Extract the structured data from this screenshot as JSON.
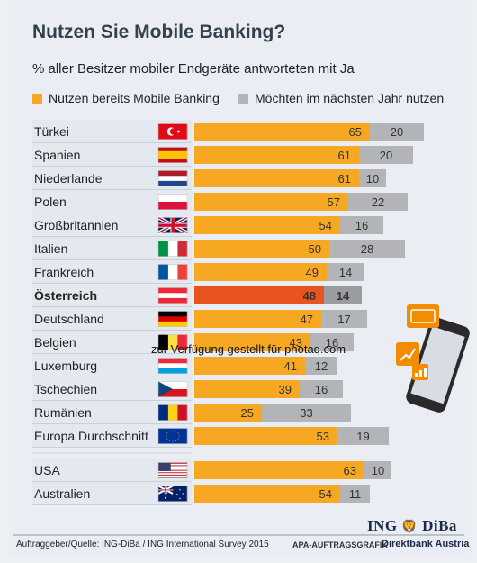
{
  "title": "Nutzen Sie Mobile Banking?",
  "subtitle": "% aller Besitzer mobiler Endgeräte antworteten mit Ja",
  "colors": {
    "series_1": "#f7a823",
    "series_1_highlight": "#e8541f",
    "series_2": "#b2b4b7",
    "series_2_highlight": "#9a9ca0",
    "row_label_bg": "#e4e9f0",
    "icon_orange": "#f28c00"
  },
  "chart_data": {
    "type": "bar",
    "orientation": "horizontal",
    "stacked": true,
    "categories": [
      "Türkei",
      "Spanien",
      "Niederlande",
      "Polen",
      "Großbritannien",
      "Italien",
      "Frankreich",
      "Österreich",
      "Deutschland",
      "Belgien",
      "Luxemburg",
      "Tschechien",
      "Rumänien",
      "Europa Durchschnitt",
      "USA",
      "Australien"
    ],
    "highlight": "Österreich",
    "series": [
      {
        "name": "Nutzen bereits Mobile Banking",
        "values": [
          65,
          61,
          61,
          57,
          54,
          50,
          49,
          48,
          47,
          43,
          41,
          39,
          25,
          53,
          63,
          54
        ]
      },
      {
        "name": "Möchten im nächsten Jahr nutzen",
        "values": [
          20,
          20,
          10,
          22,
          16,
          28,
          14,
          14,
          17,
          16,
          12,
          16,
          33,
          19,
          10,
          11
        ]
      }
    ],
    "flag_icons": [
      "flag-turkey-icon",
      "flag-spain-icon",
      "flag-netherlands-icon",
      "flag-poland-icon",
      "flag-uk-icon",
      "flag-italy-icon",
      "flag-france-icon",
      "flag-austria-icon",
      "flag-germany-icon",
      "flag-belgium-icon",
      "flag-luxembourg-icon",
      "flag-czechia-icon",
      "flag-romania-icon",
      "flag-eu-icon",
      "flag-usa-icon",
      "flag-australia-icon"
    ],
    "legend_position": "top",
    "xlim": [
      0,
      100
    ]
  },
  "footer": {
    "source": "Auftraggeber/Quelle: ING-DiBa / ING International Survey 2015",
    "apa": "APA-AUFTRAGSGRAFIK",
    "brand": "Direktbank Austria",
    "logo_left": "ING",
    "logo_right": "DiBa"
  },
  "watermark": "zur Verfügung gestellt für photaq.com",
  "illustration": [
    "smartphone-icon",
    "credit-card-icon",
    "line-chart-icon",
    "bar-chart-icon"
  ]
}
